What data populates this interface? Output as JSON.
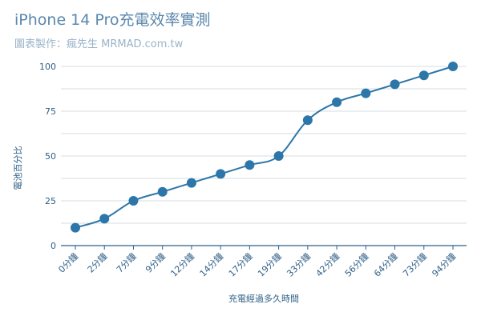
{
  "chart_data": {
    "type": "line",
    "title": "iPhone 14 Pro充電效率實測",
    "subtitle": "圖表製作：瘋先生 MRMAD.com.tw",
    "xlabel": "充電經過多久時間",
    "ylabel": "電池百分比",
    "categories": [
      "0分鐘",
      "2分鐘",
      "7分鐘",
      "9分鐘",
      "12分鐘",
      "14分鐘",
      "17分鐘",
      "19分鐘",
      "33分鐘",
      "42分鐘",
      "56分鐘",
      "64分鐘",
      "73分鐘",
      "94分鐘"
    ],
    "series": [
      {
        "values": [
          10,
          15,
          25,
          30,
          35,
          40,
          45,
          50,
          70,
          80,
          85,
          90,
          95,
          100
        ]
      }
    ],
    "ylim": [
      0,
      100
    ],
    "yticks": [
      0,
      25,
      50,
      75,
      100
    ],
    "grid": true,
    "colors": {
      "line": "#2c76a9",
      "point": "#2c76a9",
      "grid": "#d6dde3",
      "axis": "#2f5f86"
    }
  }
}
